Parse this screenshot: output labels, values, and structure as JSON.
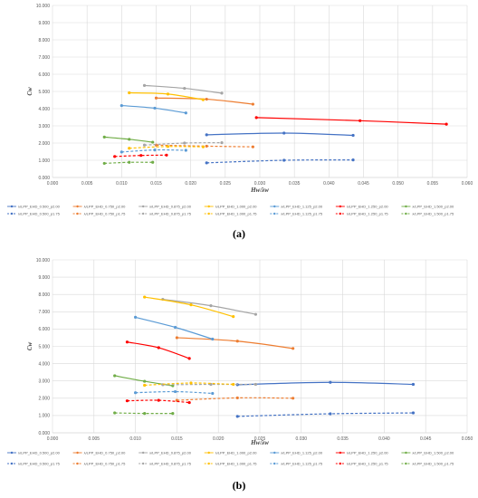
{
  "chart_data": [
    {
      "type": "line",
      "panel_label": "(a)",
      "xlabel": "Hw/λw",
      "ylabel": "Cw",
      "xlim": [
        0,
        0.06
      ],
      "ylim": [
        0,
        10
      ],
      "xticks": [
        "0.000",
        "0.005",
        "0.010",
        "0.015",
        "0.020",
        "0.025",
        "0.030",
        "0.035",
        "0.040",
        "0.045",
        "0.050",
        "0.055",
        "0.060"
      ],
      "yticks": [
        "0.000",
        "1.000",
        "2.000",
        "3.000",
        "4.000",
        "5.000",
        "6.000",
        "7.000",
        "8.000",
        "9.000",
        "10.000"
      ],
      "grid": true,
      "legend_position": "bottom",
      "series": [
        {
          "name": "λ/LPP_EHD_0.500_p2.00",
          "color": "#4472C4",
          "dash": "solid",
          "x": [
            0.0223,
            0.0335,
            0.0435
          ],
          "y": [
            2.48,
            2.58,
            2.45
          ]
        },
        {
          "name": "λ/LPP_EHD_0.750_p2.00",
          "color": "#ED7D31",
          "dash": "solid",
          "x": [
            0.015,
            0.0223,
            0.029
          ],
          "y": [
            4.62,
            4.55,
            4.26
          ]
        },
        {
          "name": "λ/LPP_EHD_0.875_p2.00",
          "color": "#A5A5A5",
          "dash": "solid",
          "x": [
            0.0133,
            0.0191,
            0.0245
          ],
          "y": [
            5.35,
            5.18,
            4.9
          ]
        },
        {
          "name": "λ/LPP_EHD_1.000_p2.00",
          "color": "#FFC000",
          "dash": "solid",
          "x": [
            0.0111,
            0.0167,
            0.0218
          ],
          "y": [
            4.92,
            4.85,
            4.52
          ]
        },
        {
          "name": "λ/LPP_EHD_1.125_p2.00",
          "color": "#5B9BD5",
          "dash": "solid",
          "x": [
            0.01,
            0.0148,
            0.0193
          ],
          "y": [
            4.18,
            4.03,
            3.75
          ]
        },
        {
          "name": "λ/LPP_EHD_1.250_p2.00",
          "color": "#FF0000",
          "dash": "solid",
          "x": [
            0.0295,
            0.0445,
            0.057
          ],
          "y": [
            3.48,
            3.3,
            3.1
          ]
        },
        {
          "name": "λ/LPP_EHD_1.500_p2.00",
          "color": "#70AD47",
          "dash": "solid",
          "x": [
            0.0075,
            0.0111,
            0.0145
          ],
          "y": [
            2.35,
            2.22,
            2.05
          ]
        },
        {
          "name": "λ/LPP_EHD_0.500_p1.75",
          "color": "#4472C4",
          "dash": "dashed",
          "x": [
            0.0223,
            0.0335,
            0.0435
          ],
          "y": [
            0.85,
            1.0,
            1.02
          ]
        },
        {
          "name": "λ/LPP_EHD_0.750_p1.75",
          "color": "#ED7D31",
          "dash": "dashed",
          "x": [
            0.015,
            0.0223,
            0.029
          ],
          "y": [
            1.88,
            1.82,
            1.78
          ]
        },
        {
          "name": "λ/LPP_EHD_0.875_p1.75",
          "color": "#A5A5A5",
          "dash": "dashed",
          "x": [
            0.0133,
            0.0191,
            0.0245
          ],
          "y": [
            1.88,
            2.0,
            2.02
          ]
        },
        {
          "name": "λ/LPP_EHD_1.000_p1.75",
          "color": "#FFC000",
          "dash": "dashed",
          "x": [
            0.0111,
            0.0167,
            0.0218
          ],
          "y": [
            1.7,
            1.8,
            1.78
          ]
        },
        {
          "name": "λ/LPP_EHD_1.125_p1.75",
          "color": "#5B9BD5",
          "dash": "dashed",
          "x": [
            0.01,
            0.0148,
            0.0193
          ],
          "y": [
            1.48,
            1.6,
            1.58
          ]
        },
        {
          "name": "λ/LPP_EHD_1.250_p1.75",
          "color": "#FF0000",
          "dash": "dashed",
          "x": [
            0.009,
            0.0128,
            0.0165
          ],
          "y": [
            1.22,
            1.28,
            1.3
          ]
        },
        {
          "name": "λ/LPP_EHD_1.500_p1.75",
          "color": "#70AD47",
          "dash": "dashed",
          "x": [
            0.0075,
            0.0111,
            0.0145
          ],
          "y": [
            0.82,
            0.88,
            0.88
          ]
        }
      ]
    },
    {
      "type": "line",
      "panel_label": "(b)",
      "xlabel": "Hw/λw",
      "ylabel": "Cw",
      "xlim": [
        0,
        0.05
      ],
      "ylim": [
        0,
        10
      ],
      "xticks": [
        "0.000",
        "0.005",
        "0.010",
        "0.015",
        "0.020",
        "0.025",
        "0.030",
        "0.035",
        "0.040",
        "0.045",
        "0.050"
      ],
      "yticks": [
        "0.000",
        "1.000",
        "2.000",
        "3.000",
        "4.000",
        "5.000",
        "6.000",
        "7.000",
        "8.000",
        "9.000",
        "10.000"
      ],
      "grid": true,
      "legend_position": "bottom",
      "series": [
        {
          "name": "λ/LPP_EHD_0.500_p2.00",
          "color": "#4472C4",
          "dash": "solid",
          "x": [
            0.0223,
            0.0335,
            0.0435
          ],
          "y": [
            2.78,
            2.92,
            2.8
          ]
        },
        {
          "name": "λ/LPP_EHD_0.750_p2.00",
          "color": "#ED7D31",
          "dash": "solid",
          "x": [
            0.015,
            0.0223,
            0.029
          ],
          "y": [
            5.5,
            5.3,
            4.88
          ]
        },
        {
          "name": "λ/LPP_EHD_0.875_p2.00",
          "color": "#A5A5A5",
          "dash": "solid",
          "x": [
            0.0133,
            0.0191,
            0.0245
          ],
          "y": [
            7.72,
            7.35,
            6.85
          ]
        },
        {
          "name": "λ/LPP_EHD_1.000_p2.00",
          "color": "#FFC000",
          "dash": "solid",
          "x": [
            0.0111,
            0.0167,
            0.0218
          ],
          "y": [
            7.85,
            7.4,
            6.72
          ]
        },
        {
          "name": "λ/LPP_EHD_1.125_p2.00",
          "color": "#5B9BD5",
          "dash": "solid",
          "x": [
            0.01,
            0.0148,
            0.0193
          ],
          "y": [
            6.68,
            6.1,
            5.42
          ]
        },
        {
          "name": "λ/LPP_EHD_1.250_p2.00",
          "color": "#FF0000",
          "dash": "solid",
          "x": [
            0.009,
            0.0128,
            0.0165
          ],
          "y": [
            5.25,
            4.92,
            4.3
          ]
        },
        {
          "name": "λ/LPP_EHD_1.500_p2.00",
          "color": "#70AD47",
          "dash": "solid",
          "x": [
            0.0075,
            0.0111,
            0.0145
          ],
          "y": [
            3.3,
            2.98,
            2.72
          ]
        },
        {
          "name": "λ/LPP_EHD_0.500_p1.75",
          "color": "#4472C4",
          "dash": "dashed",
          "x": [
            0.0223,
            0.0335,
            0.0435
          ],
          "y": [
            0.95,
            1.1,
            1.15
          ]
        },
        {
          "name": "λ/LPP_EHD_0.750_p1.75",
          "color": "#ED7D31",
          "dash": "dashed",
          "x": [
            0.015,
            0.0223,
            0.029
          ],
          "y": [
            1.88,
            2.02,
            2.0
          ]
        },
        {
          "name": "λ/LPP_EHD_0.875_p1.75",
          "color": "#A5A5A5",
          "dash": "dashed",
          "x": [
            0.0133,
            0.0191,
            0.0245
          ],
          "y": [
            2.78,
            2.8,
            2.8
          ]
        },
        {
          "name": "λ/LPP_EHD_1.000_p1.75",
          "color": "#FFC000",
          "dash": "dashed",
          "x": [
            0.0111,
            0.0167,
            0.0218
          ],
          "y": [
            2.75,
            2.88,
            2.8
          ]
        },
        {
          "name": "λ/LPP_EHD_1.125_p1.75",
          "color": "#5B9BD5",
          "dash": "dashed",
          "x": [
            0.01,
            0.0148,
            0.0193
          ],
          "y": [
            2.32,
            2.38,
            2.28
          ]
        },
        {
          "name": "λ/LPP_EHD_1.250_p1.75",
          "color": "#FF0000",
          "dash": "dashed",
          "x": [
            0.009,
            0.0128,
            0.0165
          ],
          "y": [
            1.85,
            1.88,
            1.75
          ]
        },
        {
          "name": "λ/LPP_EHD_1.500_p1.75",
          "color": "#70AD47",
          "dash": "dashed",
          "x": [
            0.0075,
            0.0111,
            0.0145
          ],
          "y": [
            1.15,
            1.12,
            1.12
          ]
        }
      ]
    }
  ]
}
